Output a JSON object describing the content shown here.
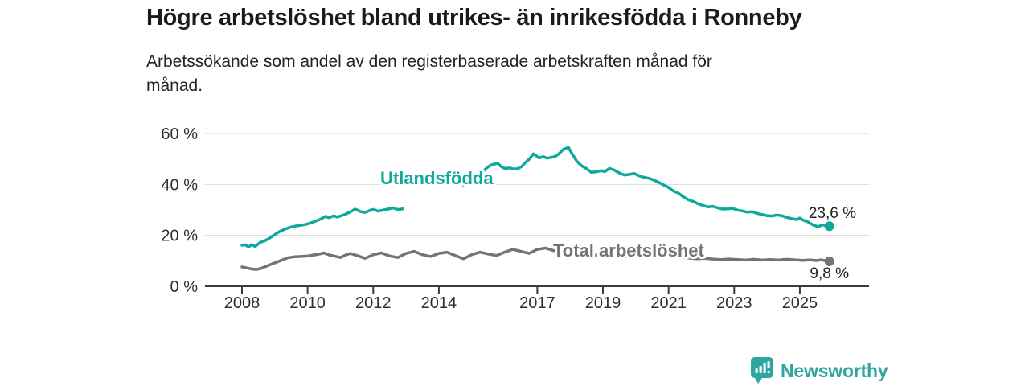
{
  "chart_data": {
    "type": "line",
    "title": "Högre arbetslöshet bland utrikes- än inrikesfödda i Ronneby",
    "subtitle_lines": [
      "Arbetssökande som andel av den registerbaserade arbetskraften månad för",
      "månad."
    ],
    "grid": "horizontal",
    "legend_position": "inline-labels",
    "x_axis": {
      "ticks": [
        2008,
        2010,
        2012,
        2014,
        2017,
        2019,
        2021,
        2023,
        2025
      ],
      "tick_labels": [
        "2008",
        "2010",
        "2012",
        "2014",
        "2017",
        "2019",
        "2021",
        "2023",
        "2025"
      ],
      "unit": "year, monthly data"
    },
    "y_axis": {
      "ticks": [
        0,
        20,
        40,
        60
      ],
      "tick_labels": [
        "0 %",
        "20 %",
        "40 %",
        "60 %"
      ],
      "unit": "%",
      "ylim": [
        0,
        62
      ]
    },
    "series": [
      {
        "id": "utlandsfodda",
        "name": "Utlandsfödda",
        "color": "#0ea99c",
        "end_value": 23.6,
        "end_value_label": "23,6 %",
        "segments": [
          [
            [
              2008.0,
              16.1
            ],
            [
              2008.1,
              16.3
            ],
            [
              2008.2,
              15.4
            ],
            [
              2008.3,
              16.4
            ],
            [
              2008.4,
              15.6
            ],
            [
              2008.55,
              17.2
            ],
            [
              2008.7,
              17.9
            ],
            [
              2008.85,
              19.0
            ],
            [
              2009.0,
              20.3
            ],
            [
              2009.15,
              21.5
            ],
            [
              2009.3,
              22.4
            ],
            [
              2009.5,
              23.3
            ],
            [
              2009.7,
              23.8
            ],
            [
              2009.9,
              24.2
            ],
            [
              2010.0,
              24.5
            ],
            [
              2010.2,
              25.4
            ],
            [
              2010.4,
              26.4
            ],
            [
              2010.55,
              27.5
            ],
            [
              2010.65,
              26.9
            ],
            [
              2010.8,
              27.7
            ],
            [
              2010.9,
              27.2
            ],
            [
              2011.0,
              27.6
            ],
            [
              2011.15,
              28.3
            ],
            [
              2011.3,
              29.2
            ],
            [
              2011.45,
              30.3
            ],
            [
              2011.6,
              29.4
            ],
            [
              2011.75,
              29.0
            ],
            [
              2011.9,
              29.8
            ],
            [
              2012.0,
              30.2
            ],
            [
              2012.15,
              29.5
            ],
            [
              2012.3,
              29.9
            ],
            [
              2012.45,
              30.3
            ],
            [
              2012.6,
              30.8
            ],
            [
              2012.75,
              30.1
            ],
            [
              2012.9,
              30.4
            ]
          ],
          [
            [
              2014.76,
              39.6
            ],
            [
              2014.88,
              41.2
            ],
            [
              2015.0,
              41.8
            ],
            [
              2015.1,
              43.1
            ],
            [
              2015.22,
              43.9
            ],
            [
              2015.34,
              44.9
            ],
            [
              2015.46,
              46.5
            ],
            [
              2015.58,
              47.6
            ],
            [
              2015.7,
              48.0
            ],
            [
              2015.78,
              48.4
            ],
            [
              2015.9,
              47.0
            ],
            [
              2016.02,
              46.2
            ],
            [
              2016.15,
              46.5
            ],
            [
              2016.28,
              46.0
            ],
            [
              2016.4,
              46.2
            ],
            [
              2016.52,
              47.0
            ],
            [
              2016.64,
              48.6
            ],
            [
              2016.76,
              50.0
            ],
            [
              2016.88,
              52.0
            ],
            [
              2016.95,
              51.4
            ],
            [
              2017.05,
              50.4
            ],
            [
              2017.18,
              50.9
            ],
            [
              2017.3,
              50.3
            ],
            [
              2017.42,
              50.6
            ],
            [
              2017.55,
              51.0
            ],
            [
              2017.65,
              51.9
            ],
            [
              2017.8,
              53.8
            ],
            [
              2017.95,
              54.5
            ],
            [
              2018.05,
              52.2
            ],
            [
              2018.2,
              49.2
            ],
            [
              2018.35,
              47.3
            ],
            [
              2018.5,
              46.2
            ],
            [
              2018.65,
              44.7
            ],
            [
              2018.8,
              45.0
            ],
            [
              2018.95,
              45.4
            ],
            [
              2019.05,
              45.0
            ],
            [
              2019.2,
              46.3
            ],
            [
              2019.35,
              45.6
            ],
            [
              2019.5,
              44.5
            ],
            [
              2019.65,
              43.7
            ],
            [
              2019.8,
              43.9
            ],
            [
              2019.95,
              44.3
            ],
            [
              2020.1,
              43.4
            ],
            [
              2020.25,
              42.8
            ],
            [
              2020.4,
              42.4
            ],
            [
              2020.55,
              41.7
            ],
            [
              2020.7,
              40.8
            ],
            [
              2020.85,
              39.8
            ],
            [
              2021.0,
              38.8
            ],
            [
              2021.15,
              37.4
            ],
            [
              2021.3,
              36.6
            ],
            [
              2021.45,
              35.1
            ],
            [
              2021.6,
              34.0
            ],
            [
              2021.75,
              33.3
            ],
            [
              2021.9,
              32.4
            ],
            [
              2022.05,
              31.7
            ],
            [
              2022.2,
              31.2
            ],
            [
              2022.35,
              31.4
            ],
            [
              2022.5,
              30.8
            ],
            [
              2022.65,
              30.3
            ],
            [
              2022.8,
              30.4
            ],
            [
              2022.95,
              30.6
            ],
            [
              2023.1,
              29.9
            ],
            [
              2023.25,
              29.6
            ],
            [
              2023.4,
              29.1
            ],
            [
              2023.55,
              29.3
            ],
            [
              2023.7,
              28.6
            ],
            [
              2023.85,
              28.2
            ],
            [
              2024.0,
              27.7
            ],
            [
              2024.15,
              27.6
            ],
            [
              2024.3,
              28.0
            ],
            [
              2024.45,
              27.7
            ],
            [
              2024.6,
              27.1
            ],
            [
              2024.75,
              26.6
            ],
            [
              2024.9,
              26.2
            ],
            [
              2025.0,
              26.8
            ],
            [
              2025.1,
              26.0
            ],
            [
              2025.25,
              25.3
            ],
            [
              2025.4,
              24.1
            ],
            [
              2025.55,
              23.4
            ],
            [
              2025.7,
              24.1
            ],
            [
              2025.9,
              23.6
            ]
          ]
        ]
      },
      {
        "id": "total",
        "name": "Total arbetslöshet",
        "color": "#737478",
        "end_value": 9.8,
        "end_value_label": "9,8 %",
        "segments": [
          [
            [
              2008.0,
              7.6
            ],
            [
              2008.15,
              7.2
            ],
            [
              2008.3,
              6.8
            ],
            [
              2008.45,
              6.6
            ],
            [
              2008.6,
              7.1
            ],
            [
              2008.8,
              8.2
            ],
            [
              2009.0,
              9.2
            ],
            [
              2009.2,
              10.2
            ],
            [
              2009.4,
              11.2
            ],
            [
              2009.6,
              11.6
            ],
            [
              2009.8,
              11.7
            ],
            [
              2010.0,
              11.9
            ],
            [
              2010.2,
              12.3
            ],
            [
              2010.4,
              12.8
            ],
            [
              2010.5,
              13.1
            ],
            [
              2010.65,
              12.3
            ],
            [
              2010.8,
              11.9
            ],
            [
              2011.0,
              11.3
            ],
            [
              2011.15,
              12.2
            ],
            [
              2011.3,
              12.9
            ],
            [
              2011.5,
              12.1
            ],
            [
              2011.75,
              11.0
            ],
            [
              2012.0,
              12.4
            ],
            [
              2012.25,
              13.1
            ],
            [
              2012.5,
              11.9
            ],
            [
              2012.75,
              11.3
            ],
            [
              2013.0,
              12.9
            ],
            [
              2013.25,
              13.7
            ],
            [
              2013.5,
              12.4
            ],
            [
              2013.75,
              11.7
            ],
            [
              2014.0,
              12.9
            ],
            [
              2014.25,
              13.4
            ],
            [
              2014.5,
              12.1
            ],
            [
              2014.75,
              10.8
            ],
            [
              2015.0,
              12.4
            ],
            [
              2015.25,
              13.4
            ],
            [
              2015.5,
              12.7
            ],
            [
              2015.75,
              12.1
            ],
            [
              2016.0,
              13.4
            ],
            [
              2016.25,
              14.5
            ],
            [
              2016.5,
              13.7
            ],
            [
              2016.75,
              12.9
            ],
            [
              2017.0,
              14.5
            ],
            [
              2017.25,
              15.0
            ],
            [
              2017.5,
              14.0
            ],
            [
              2017.75,
              13.4
            ],
            [
              2018.0,
              13.8
            ],
            [
              2018.25,
              13.2
            ],
            [
              2018.5,
              12.6
            ],
            [
              2018.75,
              12.2
            ],
            [
              2019.0,
              12.8
            ],
            [
              2019.25,
              12.4
            ],
            [
              2019.5,
              11.9
            ],
            [
              2019.75,
              11.7
            ],
            [
              2020.0,
              12.1
            ],
            [
              2020.3,
              12.9
            ],
            [
              2020.5,
              13.3
            ],
            [
              2020.7,
              12.8
            ],
            [
              2021.0,
              12.2
            ],
            [
              2021.3,
              11.6
            ],
            [
              2021.6,
              11.1
            ],
            [
              2021.85,
              10.8
            ],
            [
              2022.1,
              11.0
            ],
            [
              2022.35,
              10.7
            ],
            [
              2022.6,
              10.5
            ],
            [
              2022.85,
              10.7
            ],
            [
              2023.1,
              10.5
            ],
            [
              2023.35,
              10.3
            ],
            [
              2023.6,
              10.6
            ],
            [
              2023.85,
              10.3
            ],
            [
              2024.1,
              10.5
            ],
            [
              2024.35,
              10.3
            ],
            [
              2024.6,
              10.6
            ],
            [
              2024.85,
              10.4
            ],
            [
              2025.1,
              10.2
            ],
            [
              2025.3,
              10.4
            ],
            [
              2025.5,
              10.1
            ],
            [
              2025.65,
              10.4
            ],
            [
              2025.9,
              9.8
            ]
          ]
        ]
      }
    ]
  },
  "colors": {
    "teal": "#0ea99c",
    "gray": "#737478",
    "grid": "#d9d9d9",
    "axis": "#3b3b3b",
    "axis_text": "#2f2f2f",
    "value_text": "#222222",
    "brand_teal": "#2ea59d"
  },
  "footer": {
    "brand": "Newsworthy",
    "icon": "bar-chart-speech-bubble-icon"
  }
}
